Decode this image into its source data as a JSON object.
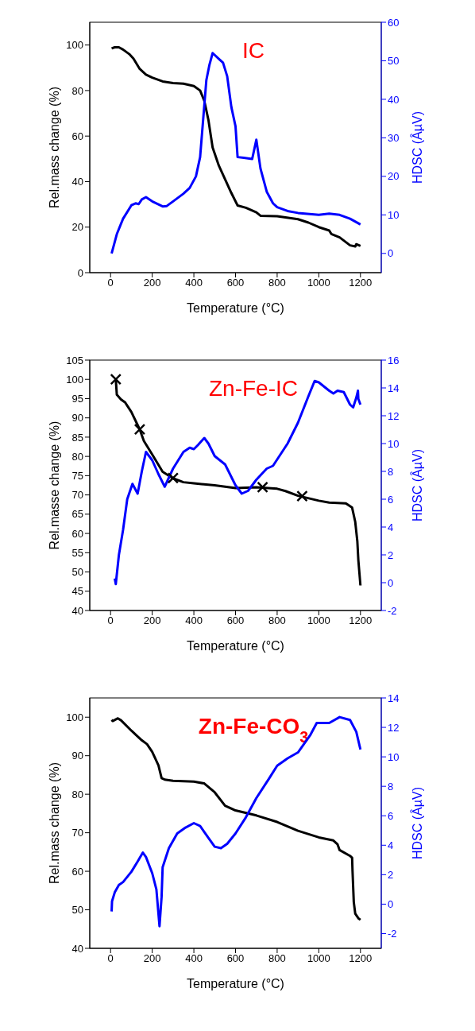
{
  "chart_data": [
    {
      "type": "line",
      "title": "IC",
      "xlabel": "Temperature (°C)",
      "ylabel": "Rel.mass change (%)",
      "y2label": "HDSC (ÂµV)",
      "xlim": [
        -100,
        1300
      ],
      "xticks": [
        0,
        200,
        400,
        600,
        800,
        1000,
        1200
      ],
      "ylim": [
        0,
        110
      ],
      "yticks": [
        0,
        20,
        40,
        60,
        80,
        100
      ],
      "y2lim": [
        -5,
        60
      ],
      "y2ticks": [
        0,
        10,
        20,
        30,
        40,
        50,
        60
      ],
      "line_style": "solid",
      "series": [
        {
          "color": "#000000",
          "x": [
            5,
            20,
            40,
            60,
            90,
            110,
            140,
            170,
            200,
            250,
            300,
            350,
            400,
            430,
            450,
            470,
            490,
            520,
            550,
            580,
            610,
            650,
            700,
            720,
            800,
            900,
            950,
            1000,
            1050,
            1060,
            1100,
            1150,
            1175,
            1180,
            1200
          ],
          "values": [
            98.5,
            99,
            99,
            98,
            96,
            94,
            89.5,
            87,
            85.7,
            84,
            83.3,
            83,
            82,
            80,
            75.5,
            67,
            55,
            47,
            41,
            35,
            29.5,
            28.5,
            26.5,
            25,
            24.8,
            23.5,
            22,
            20,
            18.5,
            17,
            15.5,
            12,
            11.5,
            12.5,
            11.7
          ]
        },
        {
          "color": "#0000ff",
          "axis": "y2",
          "x": [
            5,
            30,
            60,
            100,
            120,
            135,
            150,
            170,
            200,
            250,
            270,
            300,
            350,
            380,
            410,
            430,
            445,
            460,
            475,
            490,
            520,
            540,
            560,
            580,
            600,
            610,
            640,
            680,
            700,
            720,
            750,
            780,
            800,
            850,
            900,
            1000,
            1050,
            1100,
            1150,
            1200
          ],
          "values": [
            0,
            5,
            9,
            12.5,
            13,
            12.8,
            14,
            14.6,
            13.5,
            12.2,
            12.3,
            13.5,
            15.5,
            17,
            20,
            25,
            35,
            45,
            49,
            52,
            50.5,
            49.5,
            46,
            38,
            33,
            25,
            24.8,
            24.5,
            29.5,
            22,
            16,
            13,
            12,
            11,
            10.5,
            10,
            10.3,
            10,
            9,
            7.5
          ]
        }
      ]
    },
    {
      "type": "line",
      "title": "Zn-Fe-IC",
      "xlabel": "Temperature (°C)",
      "ylabel": "Rel.masse change (%)",
      "y2label": "HDSC (ÂµV)",
      "xlim": [
        -100,
        1300
      ],
      "xticks": [
        0,
        200,
        400,
        600,
        800,
        1000,
        1200
      ],
      "ylim": [
        40,
        105
      ],
      "yticks": [
        40,
        45,
        50,
        55,
        60,
        65,
        70,
        75,
        80,
        85,
        90,
        95,
        100,
        105
      ],
      "y2lim": [
        -2,
        16
      ],
      "y2ticks": [
        -2,
        0,
        2,
        4,
        6,
        8,
        10,
        12,
        14,
        16
      ],
      "line_style": "solid",
      "series": [
        {
          "color": "#000000",
          "x": [
            25,
            30,
            50,
            70,
            100,
            140,
            160,
            200,
            250,
            300,
            350,
            400,
            500,
            600,
            700,
            800,
            840,
            900,
            1000,
            1050,
            1130,
            1160,
            1175,
            1185,
            1190,
            1200
          ],
          "values": [
            100,
            96,
            94.8,
            94,
            91.5,
            87,
            84,
            80.5,
            76,
            74.3,
            73.3,
            73,
            72.5,
            71.8,
            72,
            71.6,
            71,
            69.8,
            68.5,
            68,
            67.8,
            66.7,
            63,
            58,
            53,
            46.5
          ]
        },
        {
          "type": "scatter",
          "marker": "cross",
          "color": "#000000",
          "x": [
            25,
            140,
            300,
            730,
            920
          ],
          "values": [
            100,
            87,
            74.4,
            72,
            69.7
          ]
        },
        {
          "color": "#0000ff",
          "axis": "y2",
          "x": [
            20,
            25,
            40,
            60,
            80,
            105,
            130,
            150,
            170,
            200,
            230,
            260,
            300,
            350,
            380,
            400,
            420,
            450,
            470,
            500,
            550,
            600,
            630,
            660,
            700,
            750,
            780,
            850,
            900,
            950,
            980,
            1000,
            1050,
            1070,
            1090,
            1120,
            1150,
            1165,
            1180,
            1188,
            1190,
            1200
          ],
          "values": [
            0.3,
            -0.1,
            2,
            3.8,
            6,
            7.1,
            6.4,
            8,
            9.4,
            8.8,
            7.8,
            6.9,
            8.2,
            9.4,
            9.7,
            9.6,
            9.9,
            10.4,
            10,
            9.1,
            8.5,
            7,
            6.4,
            6.6,
            7.4,
            8.2,
            8.4,
            10,
            11.5,
            13.4,
            14.5,
            14.4,
            13.8,
            13.6,
            13.8,
            13.7,
            12.8,
            12.6,
            13.3,
            13.8,
            13.2,
            12.8
          ]
        }
      ]
    },
    {
      "type": "line",
      "title": "Zn-Fe-CO$_{3}$",
      "xlabel": "Temperature (°C)",
      "ylabel": "Rel.mass change (%)",
      "y2label": "HDSC (ÂµV)",
      "xlim": [
        -100,
        1300
      ],
      "xticks": [
        0,
        200,
        400,
        600,
        800,
        1000,
        1200
      ],
      "ylim": [
        40,
        105
      ],
      "yticks": [
        40,
        50,
        60,
        70,
        80,
        90,
        100
      ],
      "y2lim": [
        -3,
        14
      ],
      "y2ticks": [
        -2,
        0,
        2,
        4,
        6,
        8,
        10,
        12,
        14
      ],
      "line_style": "solid",
      "series": [
        {
          "color": "#000000",
          "x": [
            5,
            10,
            35,
            50,
            100,
            150,
            175,
            200,
            230,
            245,
            260,
            300,
            400,
            450,
            500,
            550,
            600,
            700,
            800,
            900,
            1000,
            1070,
            1090,
            1100,
            1150,
            1160,
            1162,
            1168,
            1175,
            1190,
            1200
          ],
          "values": [
            99.3,
            99,
            99.7,
            99.2,
            96.5,
            94,
            93,
            91,
            87.5,
            84.2,
            83.8,
            83.5,
            83.3,
            82.8,
            80.5,
            77,
            75.8,
            74.5,
            72.8,
            70.5,
            68.8,
            68,
            67,
            65.5,
            64,
            63.5,
            60,
            52,
            49,
            47.8,
            47.4
          ]
        },
        {
          "color": "#0000ff",
          "axis": "y2",
          "x": [
            5,
            7,
            20,
            40,
            60,
            100,
            130,
            155,
            170,
            200,
            220,
            235,
            245,
            250,
            280,
            320,
            360,
            400,
            430,
            470,
            500,
            530,
            560,
            600,
            650,
            700,
            760,
            800,
            850,
            900,
            960,
            990,
            1050,
            1100,
            1150,
            1180,
            1200
          ],
          "values": [
            -0.5,
            0.2,
            0.8,
            1.3,
            1.5,
            2.2,
            2.9,
            3.5,
            3.2,
            2.1,
            1,
            -1.5,
            0.5,
            2.5,
            3.8,
            4.8,
            5.2,
            5.5,
            5.3,
            4.5,
            3.9,
            3.8,
            4.1,
            4.8,
            5.9,
            7.2,
            8.5,
            9.4,
            9.9,
            10.3,
            11.5,
            12.3,
            12.3,
            12.7,
            12.5,
            11.7,
            10.5
          ]
        }
      ]
    }
  ]
}
